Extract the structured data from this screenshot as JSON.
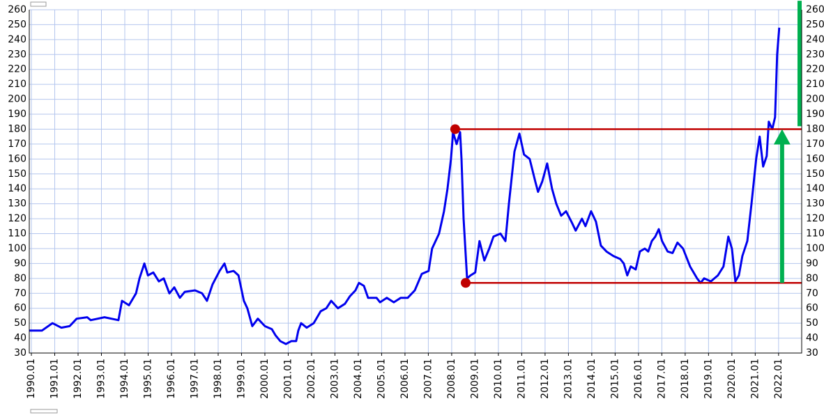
{
  "chart_data": {
    "type": "line",
    "x": [
      1989.91,
      1990.45,
      1990.9,
      1991.28,
      1991.64,
      1991.94,
      1992.39,
      1992.54,
      1993.13,
      1993.73,
      1993.88,
      1994.18,
      1994.48,
      1994.63,
      1994.84,
      1994.99,
      1995.22,
      1995.46,
      1995.67,
      1995.91,
      1996.12,
      1996.36,
      1996.57,
      1997.01,
      1997.31,
      1997.52,
      1997.76,
      1998.06,
      1998.27,
      1998.39,
      1998.66,
      1998.87,
      1999.1,
      1999.25,
      1999.46,
      1999.7,
      2000.0,
      2000.3,
      2000.45,
      2000.66,
      2000.9,
      2001.13,
      2001.34,
      2001.43,
      2001.55,
      2001.79,
      2002.09,
      2002.39,
      2002.63,
      2002.84,
      2003.13,
      2003.43,
      2003.64,
      2003.88,
      2004.03,
      2004.24,
      2004.42,
      2004.78,
      2004.93,
      2005.22,
      2005.52,
      2005.82,
      2006.12,
      2006.42,
      2006.72,
      2007.01,
      2007.16,
      2007.46,
      2007.67,
      2007.82,
      2007.97,
      2008.06,
      2008.21,
      2008.36,
      2008.42,
      2008.51,
      2008.66,
      2008.81,
      2009.01,
      2009.19,
      2009.4,
      2009.61,
      2009.79,
      2010.09,
      2010.3,
      2010.45,
      2010.69,
      2010.9,
      2011.1,
      2011.34,
      2011.58,
      2011.7,
      2011.88,
      2012.09,
      2012.3,
      2012.48,
      2012.69,
      2012.9,
      2013.13,
      2013.31,
      2013.58,
      2013.73,
      2013.97,
      2014.18,
      2014.39,
      2014.63,
      2014.93,
      2015.22,
      2015.37,
      2015.52,
      2015.67,
      2015.88,
      2016.06,
      2016.27,
      2016.42,
      2016.57,
      2016.72,
      2016.87,
      2017.01,
      2017.25,
      2017.46,
      2017.67,
      2017.91,
      2018.21,
      2018.51,
      2018.66,
      2018.81,
      2019.1,
      2019.4,
      2019.64,
      2019.85,
      2020.0,
      2020.15,
      2020.3,
      2020.45,
      2020.66,
      2020.84,
      2021.04,
      2021.19,
      2021.34,
      2021.49,
      2021.58,
      2021.73,
      2021.85,
      2021.94,
      2022.03
    ],
    "series": [
      {
        "color": "#0000ee",
        "values": [
          45,
          45,
          50,
          47,
          48,
          53,
          54,
          52,
          54,
          52,
          65,
          62,
          70,
          80,
          90,
          82,
          84,
          78,
          80,
          70,
          74,
          67,
          71,
          72,
          70,
          65,
          76,
          85,
          90,
          84,
          85,
          82,
          65,
          60,
          48,
          53,
          48,
          46,
          42,
          38,
          36,
          38,
          38,
          45,
          50,
          47,
          50,
          58,
          60,
          65,
          60,
          63,
          68,
          72,
          77,
          75,
          67,
          67,
          64,
          67,
          64,
          67,
          67,
          72,
          83,
          85,
          100,
          110,
          125,
          140,
          160,
          178,
          170,
          178,
          160,
          120,
          80,
          82,
          84,
          105,
          92,
          100,
          108,
          110,
          105,
          130,
          165,
          177,
          163,
          160,
          145,
          138,
          145,
          157,
          140,
          130,
          122,
          125,
          118,
          112,
          120,
          115,
          125,
          118,
          102,
          98,
          95,
          93,
          90,
          82,
          88,
          86,
          98,
          100,
          98,
          105,
          108,
          113,
          105,
          98,
          97,
          104,
          100,
          88,
          80,
          77,
          80,
          78,
          82,
          88,
          108,
          100,
          78,
          82,
          95,
          105,
          130,
          160,
          175,
          155,
          162,
          185,
          180,
          188,
          230,
          248
        ]
      }
    ],
    "xlim": [
      1989.91,
      2022.99
    ],
    "ylim": [
      30,
      260
    ],
    "yticks": [
      30,
      40,
      50,
      60,
      70,
      80,
      90,
      100,
      110,
      120,
      130,
      140,
      150,
      160,
      170,
      180,
      190,
      200,
      210,
      220,
      230,
      240,
      250,
      260
    ],
    "xticks": [
      {
        "value": 1990,
        "label": "1990.01"
      },
      {
        "value": 1991,
        "label": "1991.01"
      },
      {
        "value": 1992,
        "label": "1992.01"
      },
      {
        "value": 1993,
        "label": "1993.01"
      },
      {
        "value": 1994,
        "label": "1994.01"
      },
      {
        "value": 1995,
        "label": "1995.01"
      },
      {
        "value": 1996,
        "label": "1996.01"
      },
      {
        "value": 1997,
        "label": "1997.01"
      },
      {
        "value": 1998,
        "label": "1998.01"
      },
      {
        "value": 1999,
        "label": "1999.01"
      },
      {
        "value": 2000,
        "label": "2000.01"
      },
      {
        "value": 2001,
        "label": "2001.01"
      },
      {
        "value": 2002,
        "label": "2002.01"
      },
      {
        "value": 2003,
        "label": "2003.01"
      },
      {
        "value": 2004,
        "label": "2004.01"
      },
      {
        "value": 2005,
        "label": "2005.01"
      },
      {
        "value": 2006,
        "label": "2006.01"
      },
      {
        "value": 2007,
        "label": "2007.01"
      },
      {
        "value": 2008,
        "label": "2008.01"
      },
      {
        "value": 2009,
        "label": "2009.01"
      },
      {
        "value": 2010,
        "label": "2010.01"
      },
      {
        "value": 2011,
        "label": "2011.01"
      },
      {
        "value": 2012,
        "label": "2012.01"
      },
      {
        "value": 2013,
        "label": "2013.01"
      },
      {
        "value": 2014,
        "label": "2014.01"
      },
      {
        "value": 2015,
        "label": "2015.01"
      },
      {
        "value": 2016,
        "label": "2016.01"
      },
      {
        "value": 2017,
        "label": "2017.01"
      },
      {
        "value": 2018,
        "label": "2018.01"
      },
      {
        "value": 2019,
        "label": "2019.01"
      },
      {
        "value": 2020,
        "label": "2020.01"
      },
      {
        "value": 2021,
        "label": "2021.01"
      },
      {
        "value": 2022,
        "label": "2022.01"
      }
    ],
    "grid": true,
    "annotations": {
      "hlines": [
        {
          "y": 180,
          "x0": 2008.15,
          "color": "#c00000"
        },
        {
          "y": 77,
          "x0": 2008.6,
          "color": "#c00000"
        }
      ],
      "points": [
        {
          "x": 2008.15,
          "y": 180,
          "color": "#c00000"
        },
        {
          "x": 2008.6,
          "y": 77,
          "color": "#c00000"
        }
      ],
      "arrows": [
        {
          "x": 2022.15,
          "y0": 77,
          "y1": 180,
          "color": "#00b050"
        }
      ],
      "bars": [
        {
          "x": 2022.9,
          "y0": 182,
          "y1": 266,
          "color": "#00b050"
        }
      ]
    }
  }
}
